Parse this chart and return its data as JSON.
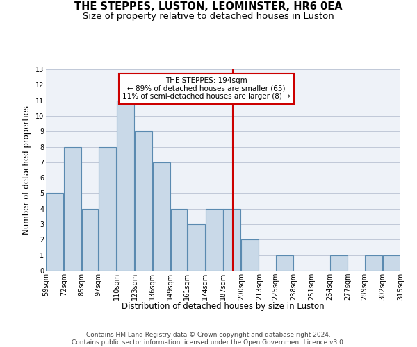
{
  "title": "THE STEPPES, LUSTON, LEOMINSTER, HR6 0EA",
  "subtitle": "Size of property relative to detached houses in Luston",
  "xlabel": "Distribution of detached houses by size in Luston",
  "ylabel": "Number of detached properties",
  "footer_line1": "Contains HM Land Registry data © Crown copyright and database right 2024.",
  "footer_line2": "Contains public sector information licensed under the Open Government Licence v3.0.",
  "annotation_title": "THE STEPPES: 194sqm",
  "annotation_line2": "← 89% of detached houses are smaller (65)",
  "annotation_line3": "11% of semi-detached houses are larger (8) →",
  "property_size": 194,
  "bar_left_edges": [
    59,
    72,
    85,
    97,
    110,
    123,
    136,
    149,
    161,
    174,
    187,
    200,
    213,
    225,
    238,
    251,
    264,
    277,
    289,
    302
  ],
  "bar_widths": [
    13,
    13,
    12,
    13,
    13,
    13,
    13,
    12,
    13,
    13,
    13,
    13,
    12,
    13,
    13,
    13,
    13,
    12,
    13,
    13
  ],
  "bar_heights": [
    5,
    8,
    4,
    8,
    11,
    9,
    7,
    4,
    3,
    4,
    4,
    2,
    0,
    1,
    0,
    0,
    1,
    0,
    1,
    1
  ],
  "tick_labels": [
    "59sqm",
    "72sqm",
    "85sqm",
    "97sqm",
    "110sqm",
    "123sqm",
    "136sqm",
    "149sqm",
    "161sqm",
    "174sqm",
    "187sqm",
    "200sqm",
    "213sqm",
    "225sqm",
    "238sqm",
    "251sqm",
    "264sqm",
    "277sqm",
    "289sqm",
    "302sqm",
    "315sqm"
  ],
  "bar_color": "#c9d9e8",
  "bar_edge_color": "#5a8ab0",
  "bar_linewidth": 0.8,
  "grid_color": "#c0c8d8",
  "bg_color": "#eef2f8",
  "vline_color": "#cc0000",
  "vline_x": 194,
  "annotation_box_color": "#cc0000",
  "ylim": [
    0,
    13
  ],
  "yticks": [
    0,
    1,
    2,
    3,
    4,
    5,
    6,
    7,
    8,
    9,
    10,
    11,
    12,
    13
  ],
  "title_fontsize": 10.5,
  "subtitle_fontsize": 9.5,
  "axis_label_fontsize": 8.5,
  "tick_fontsize": 7,
  "annotation_fontsize": 7.5,
  "footer_fontsize": 6.5,
  "ylabel_fontsize": 8.5
}
